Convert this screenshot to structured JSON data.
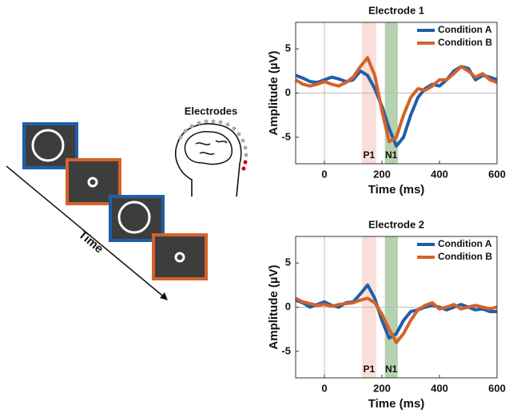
{
  "diagram": {
    "electrodes_label": "Electrodes",
    "time_label": "Time"
  },
  "chart_data": [
    {
      "type": "line",
      "title": "Electrode 1",
      "x_label": "Time (ms)",
      "y_label": "Amplitude (µV)",
      "x": [
        -100,
        -75,
        -50,
        -25,
        0,
        25,
        50,
        75,
        100,
        125,
        150,
        175,
        200,
        225,
        250,
        275,
        300,
        325,
        350,
        375,
        400,
        425,
        450,
        475,
        500,
        525,
        550,
        575,
        600
      ],
      "series": [
        {
          "name": "Condition A",
          "color": "#1f5fa8",
          "values": [
            2,
            1.7,
            1.3,
            1.2,
            1.5,
            1.8,
            1.6,
            1.3,
            1.5,
            2.5,
            2.0,
            0.5,
            -1.5,
            -4,
            -6,
            -5,
            -2.5,
            -0.5,
            0.5,
            1.0,
            0.8,
            1.5,
            2.5,
            3.0,
            2.8,
            1.5,
            2.0,
            1.8,
            1.5
          ]
        },
        {
          "name": "Condition B",
          "color": "#d4622a",
          "values": [
            1.5,
            1.0,
            0.8,
            1.0,
            1.3,
            1.0,
            0.8,
            1.2,
            1.8,
            3.0,
            4.0,
            2.0,
            -2.0,
            -5.5,
            -5.0,
            -2.5,
            -0.5,
            0.5,
            0.3,
            0.8,
            1.5,
            1.5,
            2.2,
            3.0,
            2.5,
            1.8,
            2.2,
            1.5,
            1.2
          ]
        }
      ],
      "bands": [
        {
          "label": "P1",
          "from": 130,
          "to": 180,
          "color": "#f9d8d2"
        },
        {
          "label": "N1",
          "from": 210,
          "to": 255,
          "color": "#a9c9a2"
        }
      ],
      "xlim": [
        -100,
        600
      ],
      "xticks": [
        0,
        200,
        400,
        600
      ],
      "ylim": [
        -8,
        8
      ],
      "yticks": [
        -5,
        0,
        5
      ],
      "zero_lines": true,
      "legend": "upper right"
    },
    {
      "type": "line",
      "title": "Electrode 2",
      "x_label": "Time (ms)",
      "y_label": "Amplitude (µV)",
      "x": [
        -100,
        -75,
        -50,
        -25,
        0,
        25,
        50,
        75,
        100,
        125,
        150,
        175,
        200,
        225,
        250,
        275,
        300,
        325,
        350,
        375,
        400,
        425,
        450,
        475,
        500,
        525,
        550,
        575,
        600
      ],
      "series": [
        {
          "name": "Condition A",
          "color": "#1f5fa8",
          "values": [
            0.8,
            0.5,
            0,
            0.3,
            0.6,
            0.2,
            0,
            0.5,
            0.6,
            1.5,
            2.5,
            1.0,
            -1.5,
            -3.5,
            -3.0,
            -1.5,
            -0.5,
            -0.3,
            0,
            0.2,
            0,
            -0.3,
            0,
            0.3,
            0,
            -0.3,
            -0.2,
            -0.5,
            -0.5
          ]
        },
        {
          "name": "Condition B",
          "color": "#d4622a",
          "values": [
            1.0,
            0.6,
            0.4,
            0.2,
            0.3,
            0.1,
            0.3,
            0.4,
            0.5,
            0.8,
            1.0,
            0.5,
            -0.8,
            -2.5,
            -4.0,
            -3.0,
            -1.5,
            -0.3,
            0.2,
            0.5,
            -0.2,
            0,
            0.3,
            -0.2,
            0,
            0.2,
            0,
            -0.2,
            0
          ]
        }
      ],
      "bands": [
        {
          "label": "P1",
          "from": 130,
          "to": 180,
          "color": "#f9d8d2"
        },
        {
          "label": "N1",
          "from": 210,
          "to": 255,
          "color": "#a9c9a2"
        }
      ],
      "xlim": [
        -100,
        600
      ],
      "xticks": [
        0,
        200,
        400,
        600
      ],
      "ylim": [
        -8,
        8
      ],
      "yticks": [
        -5,
        0,
        5
      ],
      "zero_lines": true,
      "legend": "upper right"
    }
  ]
}
